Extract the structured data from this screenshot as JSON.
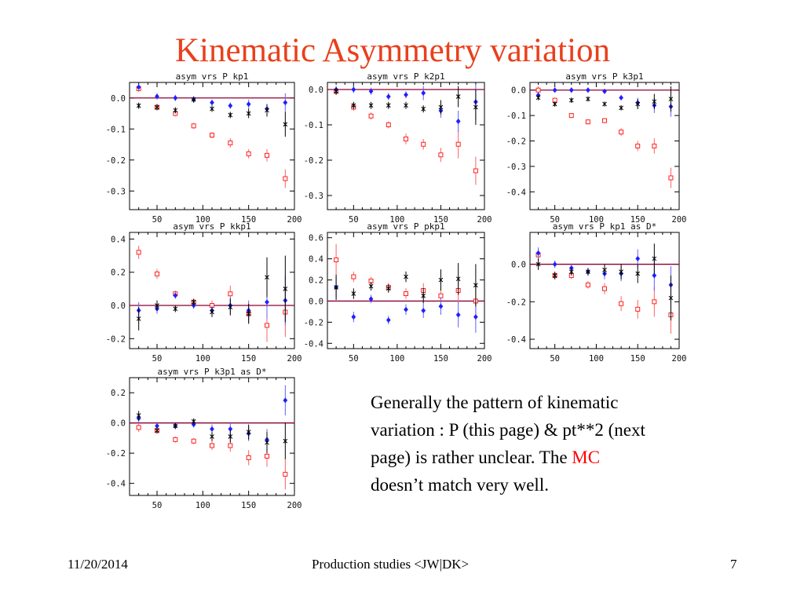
{
  "slide": {
    "title": "Kinematic Asymmetry variation",
    "note_before": "Generally the pattern of kinematic variation : P (this page) & pt**2 (next page) is rather unclear. The ",
    "note_highlight": "MC",
    "note_after": " doesn’t match very well.",
    "date": "11/20/2014",
    "footer": "Production studies <JW|DK>",
    "page": "7"
  },
  "colors": {
    "title": "#e8401c",
    "zero_line": "#8b0033",
    "red": "#ff2020",
    "blue": "#2020ff",
    "black": "#000000",
    "highlight": "#ff0000"
  },
  "chart_data": [
    {
      "type": "scatter",
      "title": "asym vrs P kp1",
      "x": [
        30,
        50,
        70,
        90,
        110,
        130,
        150,
        170,
        190
      ],
      "xlim": [
        20,
        200
      ],
      "ylim": [
        -0.36,
        0.05
      ],
      "xticks": [
        50,
        100,
        150,
        200
      ],
      "yticks": [
        0.0,
        -0.1,
        -0.2,
        -0.3
      ],
      "ytick_labels": [
        "0.0",
        "-0.1",
        "-0.2",
        "-0.3"
      ],
      "series": [
        {
          "marker": "square",
          "color": "red",
          "values": [
            0.03,
            -0.03,
            -0.05,
            -0.09,
            -0.12,
            -0.145,
            -0.18,
            -0.185,
            -0.26
          ],
          "errors": [
            0.01,
            0.01,
            0.01,
            0.01,
            0.01,
            0.015,
            0.015,
            0.02,
            0.03
          ]
        },
        {
          "marker": "diamond",
          "color": "blue",
          "values": [
            0.035,
            0.005,
            0.0,
            -0.005,
            -0.015,
            -0.025,
            -0.02,
            -0.035,
            -0.015
          ],
          "errors": [
            0.01,
            0.01,
            0.01,
            0.01,
            0.01,
            0.01,
            0.015,
            0.015,
            0.03
          ]
        },
        {
          "marker": "cross",
          "color": "black",
          "values": [
            -0.025,
            -0.03,
            -0.04,
            -0.005,
            -0.035,
            -0.055,
            -0.05,
            -0.04,
            -0.085
          ],
          "errors": [
            0.01,
            0.01,
            0.01,
            0.01,
            0.01,
            0.01,
            0.015,
            0.02,
            0.04
          ]
        }
      ]
    },
    {
      "type": "scatter",
      "title": "asym vrs P k2p1",
      "x": [
        30,
        50,
        70,
        90,
        110,
        130,
        150,
        170,
        190
      ],
      "xlim": [
        20,
        200
      ],
      "ylim": [
        -0.34,
        0.02
      ],
      "xticks": [
        50,
        100,
        150,
        200
      ],
      "yticks": [
        0.0,
        -0.1,
        -0.2,
        -0.3
      ],
      "ytick_labels": [
        "0.0",
        "-0.1",
        "-0.2",
        "-0.3"
      ],
      "series": [
        {
          "marker": "square",
          "color": "red",
          "values": [
            -0.005,
            -0.05,
            -0.075,
            -0.1,
            -0.14,
            -0.155,
            -0.185,
            -0.155,
            -0.23
          ],
          "errors": [
            0.01,
            0.01,
            0.01,
            0.01,
            0.015,
            0.015,
            0.02,
            0.04,
            0.04
          ]
        },
        {
          "marker": "diamond",
          "color": "blue",
          "values": [
            0.0,
            0.0,
            -0.005,
            -0.02,
            -0.015,
            -0.01,
            -0.06,
            -0.09,
            -0.035
          ],
          "errors": [
            0.01,
            0.01,
            0.01,
            0.01,
            0.01,
            0.02,
            0.02,
            0.03,
            0.05
          ]
        },
        {
          "marker": "cross",
          "color": "black",
          "values": [
            -0.005,
            -0.045,
            -0.045,
            -0.045,
            -0.045,
            -0.055,
            -0.05,
            -0.02,
            -0.05
          ],
          "errors": [
            0.01,
            0.01,
            0.01,
            0.01,
            0.01,
            0.01,
            0.02,
            0.03,
            0.05
          ]
        }
      ]
    },
    {
      "type": "scatter",
      "title": "asym vrs P k3p1",
      "x": [
        30,
        50,
        70,
        90,
        110,
        130,
        150,
        170,
        190
      ],
      "xlim": [
        20,
        200
      ],
      "ylim": [
        -0.47,
        0.03
      ],
      "xticks": [
        50,
        100,
        150,
        200
      ],
      "yticks": [
        0.0,
        -0.1,
        -0.2,
        -0.3,
        -0.4
      ],
      "ytick_labels": [
        "0.0",
        "-0.1",
        "-0.2",
        "-0.3",
        "-0.4"
      ],
      "series": [
        {
          "marker": "square",
          "color": "red",
          "values": [
            0.0,
            -0.04,
            -0.1,
            -0.125,
            -0.12,
            -0.165,
            -0.22,
            -0.22,
            -0.345
          ],
          "errors": [
            0.015,
            0.01,
            0.01,
            0.01,
            0.01,
            0.015,
            0.02,
            0.03,
            0.04
          ]
        },
        {
          "marker": "diamond",
          "color": "blue",
          "values": [
            -0.02,
            0.0,
            0.0,
            0.0,
            -0.005,
            -0.03,
            -0.05,
            -0.06,
            -0.065
          ],
          "errors": [
            0.01,
            0.01,
            0.01,
            0.01,
            0.01,
            0.01,
            0.02,
            0.03,
            0.04
          ]
        },
        {
          "marker": "cross",
          "color": "black",
          "values": [
            -0.03,
            -0.055,
            -0.04,
            -0.035,
            -0.055,
            -0.07,
            -0.055,
            -0.045,
            -0.035
          ],
          "errors": [
            0.01,
            0.01,
            0.01,
            0.01,
            0.01,
            0.01,
            0.02,
            0.03,
            0.05
          ]
        }
      ]
    },
    {
      "type": "scatter",
      "title": "asym vrs P kkp1",
      "x": [
        30,
        50,
        70,
        90,
        110,
        130,
        150,
        170,
        190
      ],
      "xlim": [
        20,
        200
      ],
      "ylim": [
        -0.26,
        0.44
      ],
      "xticks": [
        50,
        100,
        150,
        200
      ],
      "yticks": [
        0.4,
        0.2,
        0.0,
        -0.2
      ],
      "ytick_labels": [
        "0.4",
        "0.2",
        "0.0",
        "-0.2"
      ],
      "series": [
        {
          "marker": "square",
          "color": "red",
          "values": [
            0.32,
            0.19,
            0.07,
            0.02,
            0.0,
            0.07,
            -0.05,
            -0.12,
            -0.04
          ],
          "errors": [
            0.04,
            0.03,
            0.02,
            0.02,
            0.03,
            0.05,
            0.06,
            0.1,
            0.15
          ]
        },
        {
          "marker": "diamond",
          "color": "blue",
          "values": [
            -0.03,
            -0.02,
            0.06,
            0.0,
            -0.03,
            0.0,
            -0.03,
            0.02,
            0.03
          ],
          "errors": [
            0.05,
            0.03,
            0.02,
            0.02,
            0.03,
            0.05,
            0.06,
            0.1,
            0.15
          ]
        },
        {
          "marker": "cross",
          "color": "black",
          "values": [
            -0.08,
            0.0,
            -0.02,
            0.02,
            -0.04,
            -0.01,
            -0.05,
            0.17,
            0.1
          ],
          "errors": [
            0.07,
            0.03,
            0.02,
            0.02,
            0.03,
            0.05,
            0.06,
            0.12,
            0.2
          ]
        }
      ]
    },
    {
      "type": "scatter",
      "title": "asym vrs P pkp1",
      "x": [
        30,
        50,
        70,
        90,
        110,
        130,
        150,
        170,
        190
      ],
      "xlim": [
        20,
        200
      ],
      "ylim": [
        -0.45,
        0.65
      ],
      "xticks": [
        50,
        100,
        150,
        200
      ],
      "yticks": [
        0.6,
        0.4,
        0.2,
        0.0,
        -0.2,
        -0.4
      ],
      "ytick_labels": [
        "0.6",
        "0.4",
        "0.2",
        "0.0",
        "-0.2",
        "-0.4"
      ],
      "series": [
        {
          "marker": "square",
          "color": "red",
          "values": [
            0.39,
            0.23,
            0.19,
            0.13,
            0.07,
            0.1,
            0.05,
            0.1,
            0.0
          ],
          "errors": [
            0.15,
            0.05,
            0.04,
            0.04,
            0.05,
            0.07,
            0.08,
            0.12,
            0.15
          ]
        },
        {
          "marker": "diamond",
          "color": "blue",
          "values": [
            0.13,
            -0.15,
            0.02,
            -0.18,
            -0.08,
            -0.09,
            -0.05,
            -0.13,
            -0.15
          ],
          "errors": [
            0.1,
            0.05,
            0.04,
            0.04,
            0.05,
            0.07,
            0.08,
            0.12,
            0.15
          ]
        },
        {
          "marker": "cross",
          "color": "black",
          "values": [
            0.13,
            0.07,
            0.14,
            0.12,
            0.23,
            0.05,
            0.2,
            0.21,
            0.15
          ],
          "errors": [
            0.12,
            0.05,
            0.04,
            0.04,
            0.05,
            0.07,
            0.1,
            0.15,
            0.2
          ]
        }
      ]
    },
    {
      "type": "scatter",
      "title": "asym vrs P kp1 as D*",
      "x": [
        30,
        50,
        70,
        90,
        110,
        130,
        150,
        170,
        190
      ],
      "xlim": [
        20,
        200
      ],
      "ylim": [
        -0.45,
        0.17
      ],
      "xticks": [
        50,
        100,
        150,
        200
      ],
      "yticks": [
        0.0,
        -0.2,
        -0.4
      ],
      "ytick_labels": [
        "0.0",
        "-0.2",
        "-0.4"
      ],
      "series": [
        {
          "marker": "square",
          "color": "red",
          "values": [
            0.05,
            -0.06,
            -0.06,
            -0.11,
            -0.13,
            -0.21,
            -0.24,
            -0.2,
            -0.27
          ],
          "errors": [
            0.03,
            0.02,
            0.02,
            0.02,
            0.03,
            0.04,
            0.05,
            0.08,
            0.1
          ]
        },
        {
          "marker": "diamond",
          "color": "blue",
          "values": [
            0.06,
            0.0,
            -0.02,
            -0.04,
            -0.05,
            -0.05,
            0.03,
            -0.06,
            -0.11
          ],
          "errors": [
            0.03,
            0.02,
            0.02,
            0.02,
            0.03,
            0.04,
            0.05,
            0.08,
            0.1
          ]
        },
        {
          "marker": "cross",
          "color": "black",
          "values": [
            0.0,
            -0.06,
            -0.04,
            -0.04,
            -0.03,
            -0.04,
            -0.05,
            0.03,
            -0.18
          ],
          "errors": [
            0.03,
            0.02,
            0.02,
            0.02,
            0.03,
            0.04,
            0.05,
            0.08,
            0.12
          ]
        }
      ]
    },
    {
      "type": "scatter",
      "title": "asym vrs P k3p1 as D*",
      "x": [
        30,
        50,
        70,
        90,
        110,
        130,
        150,
        170,
        190
      ],
      "xlim": [
        20,
        200
      ],
      "ylim": [
        -0.48,
        0.3
      ],
      "xticks": [
        50,
        100,
        150,
        200
      ],
      "yticks": [
        0.2,
        0.0,
        -0.2,
        -0.4
      ],
      "ytick_labels": [
        "0.2",
        "0.0",
        "-0.2",
        "-0.4"
      ],
      "series": [
        {
          "marker": "square",
          "color": "red",
          "values": [
            -0.03,
            -0.05,
            -0.11,
            -0.12,
            -0.15,
            -0.15,
            -0.23,
            -0.22,
            -0.34
          ],
          "errors": [
            0.03,
            0.02,
            0.02,
            0.02,
            0.03,
            0.04,
            0.05,
            0.07,
            0.1
          ]
        },
        {
          "marker": "diamond",
          "color": "blue",
          "values": [
            0.03,
            -0.02,
            -0.02,
            -0.01,
            -0.04,
            -0.04,
            -0.07,
            -0.11,
            0.15
          ],
          "errors": [
            0.03,
            0.02,
            0.02,
            0.02,
            0.03,
            0.04,
            0.05,
            0.07,
            0.1
          ]
        },
        {
          "marker": "cross",
          "color": "black",
          "values": [
            0.05,
            -0.05,
            -0.02,
            0.01,
            -0.09,
            -0.09,
            -0.06,
            -0.13,
            -0.12
          ],
          "errors": [
            0.03,
            0.02,
            0.02,
            0.02,
            0.03,
            0.04,
            0.05,
            0.07,
            0.12
          ]
        }
      ]
    }
  ]
}
